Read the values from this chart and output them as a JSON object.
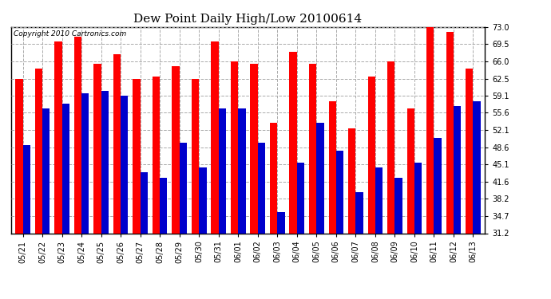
{
  "title": "Dew Point Daily High/Low 20100614",
  "copyright": "Copyright 2010 Cartronics.com",
  "dates": [
    "05/21",
    "05/22",
    "05/23",
    "05/24",
    "05/25",
    "05/26",
    "05/27",
    "05/28",
    "05/29",
    "05/30",
    "05/31",
    "06/01",
    "06/02",
    "06/03",
    "06/04",
    "06/05",
    "06/06",
    "06/07",
    "06/08",
    "06/09",
    "06/10",
    "06/11",
    "06/12",
    "06/13"
  ],
  "highs": [
    62.5,
    64.5,
    70.0,
    71.0,
    65.5,
    67.5,
    62.5,
    63.0,
    65.0,
    62.5,
    70.0,
    66.0,
    65.5,
    53.5,
    68.0,
    65.5,
    58.0,
    52.5,
    63.0,
    66.0,
    56.5,
    74.0,
    72.0,
    64.5
  ],
  "lows": [
    49.0,
    56.5,
    57.5,
    59.5,
    60.0,
    59.0,
    43.5,
    42.5,
    49.5,
    44.5,
    56.5,
    56.5,
    49.5,
    35.5,
    45.5,
    53.5,
    48.0,
    39.5,
    44.5,
    42.5,
    45.5,
    50.5,
    57.0,
    58.0
  ],
  "high_color": "#ff0000",
  "low_color": "#0000cc",
  "ylim_min": 31.2,
  "ylim_max": 73.0,
  "yticks": [
    31.2,
    34.7,
    38.2,
    41.6,
    45.1,
    48.6,
    52.1,
    55.6,
    59.1,
    62.5,
    66.0,
    69.5,
    73.0
  ],
  "bg_color": "#ffffff",
  "grid_color": "#aaaaaa",
  "bar_width": 0.38,
  "title_fontsize": 11,
  "tick_fontsize": 7,
  "copyright_fontsize": 6.5
}
